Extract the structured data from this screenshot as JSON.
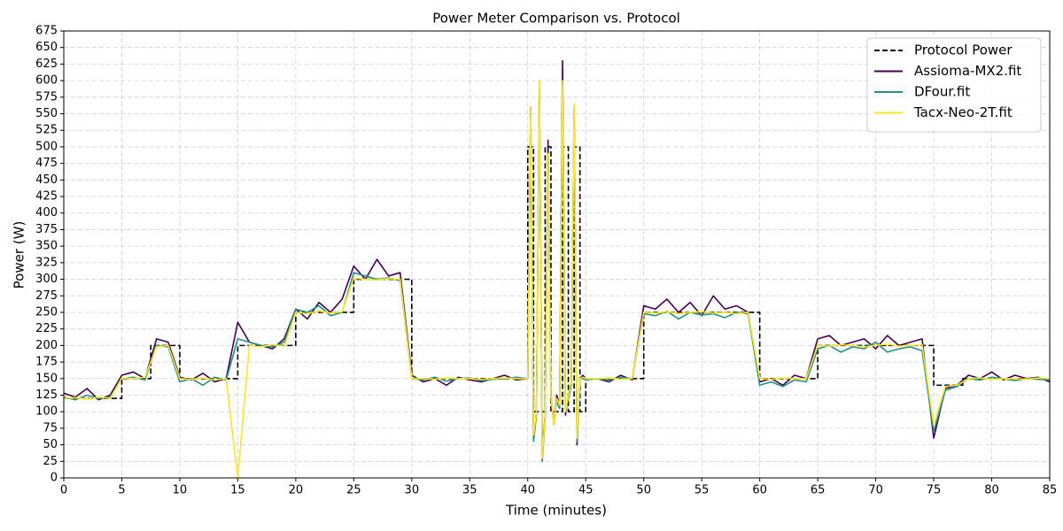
{
  "chart_data": {
    "type": "line",
    "title": "Power Meter Comparison vs. Protocol",
    "x_label": "Time (minutes)",
    "y_label": "Power (W)",
    "xlim": [
      0,
      85
    ],
    "xticks": [
      0,
      5,
      10,
      15,
      20,
      25,
      30,
      35,
      40,
      45,
      50,
      55,
      60,
      65,
      70,
      75,
      80,
      85
    ],
    "ylim": [
      0,
      675
    ],
    "yticks": [
      0,
      25,
      50,
      75,
      100,
      125,
      150,
      175,
      200,
      225,
      250,
      275,
      300,
      325,
      350,
      375,
      400,
      425,
      450,
      475,
      500,
      525,
      550,
      575,
      600,
      625,
      650,
      675
    ],
    "grid": true,
    "legend": "upper-right",
    "x": [
      0,
      1,
      2,
      3,
      4,
      5,
      6,
      7,
      8,
      9,
      10,
      11,
      12,
      13,
      14,
      15,
      16,
      17,
      18,
      19,
      20,
      21,
      22,
      23,
      24,
      25,
      26,
      27,
      28,
      29,
      30,
      31,
      32,
      33,
      34,
      35,
      36,
      37,
      38,
      39,
      40,
      40.25,
      40.5,
      40.75,
      41,
      41.25,
      41.5,
      41.75,
      42,
      42.25,
      42.5,
      42.75,
      43,
      43.25,
      43.5,
      43.75,
      44,
      44.25,
      44.5,
      44.75,
      45,
      46,
      47,
      48,
      49,
      50,
      51,
      52,
      53,
      54,
      55,
      56,
      57,
      58,
      59,
      60,
      61,
      62,
      63,
      64,
      65,
      66,
      67,
      68,
      69,
      70,
      71,
      72,
      73,
      74,
      75,
      76,
      77,
      78,
      79,
      80,
      81,
      82,
      83,
      84,
      85
    ],
    "series": [
      {
        "name": "Protocol Power",
        "color": "#000000",
        "dashed": true,
        "x": [
          0,
          5,
          5,
          7.5,
          7.5,
          10,
          10,
          15,
          15,
          20,
          20,
          25,
          25,
          30,
          30,
          40,
          40,
          40.5,
          40.5,
          41.5,
          41.5,
          42,
          42,
          43,
          43,
          43.5,
          43.5,
          44,
          44,
          44.5,
          44.5,
          45,
          45,
          50,
          50,
          60,
          60,
          65,
          65,
          75,
          75,
          77.5,
          77.5,
          85
        ],
        "values": [
          120,
          120,
          150,
          150,
          200,
          200,
          150,
          150,
          200,
          200,
          250,
          250,
          300,
          300,
          150,
          150,
          500,
          500,
          100,
          100,
          500,
          500,
          100,
          100,
          500,
          500,
          100,
          100,
          500,
          500,
          100,
          100,
          150,
          150,
          250,
          250,
          150,
          150,
          200,
          200,
          140,
          140,
          150,
          150
        ]
      },
      {
        "name": "Assioma-MX2.fit",
        "color": "#440154",
        "values": [
          128,
          122,
          135,
          118,
          125,
          155,
          160,
          150,
          210,
          205,
          152,
          148,
          158,
          145,
          150,
          235,
          205,
          200,
          195,
          210,
          255,
          240,
          265,
          250,
          270,
          320,
          300,
          330,
          305,
          310,
          155,
          145,
          150,
          140,
          152,
          148,
          145,
          150,
          155,
          148,
          150,
          560,
          60,
          100,
          590,
          40,
          95,
          510,
          125,
          80,
          125,
          110,
          630,
          95,
          125,
          145,
          560,
          50,
          150,
          155,
          150,
          150,
          145,
          155,
          148,
          260,
          255,
          270,
          250,
          265,
          245,
          275,
          255,
          260,
          250,
          145,
          150,
          140,
          155,
          150,
          210,
          215,
          200,
          205,
          210,
          195,
          215,
          200,
          205,
          210,
          60,
          135,
          140,
          155,
          150,
          160,
          148,
          155,
          150,
          152,
          145
        ]
      },
      {
        "name": "DFour.fit",
        "color": "#21918c",
        "values": [
          122,
          118,
          125,
          120,
          122,
          150,
          152,
          148,
          200,
          198,
          145,
          150,
          140,
          152,
          148,
          210,
          205,
          200,
          198,
          205,
          255,
          250,
          260,
          245,
          250,
          310,
          305,
          300,
          302,
          298,
          150,
          148,
          152,
          146,
          150,
          151,
          147,
          149,
          150,
          152,
          150,
          550,
          55,
          95,
          600,
          25,
          90,
          480,
          120,
          85,
          115,
          105,
          595,
          100,
          120,
          140,
          555,
          55,
          150,
          150,
          148,
          150,
          148,
          152,
          150,
          248,
          245,
          252,
          240,
          250,
          246,
          248,
          242,
          250,
          248,
          140,
          145,
          138,
          148,
          145,
          195,
          200,
          190,
          198,
          195,
          205,
          190,
          195,
          198,
          192,
          70,
          132,
          138,
          150,
          148,
          152,
          150,
          147,
          150,
          149,
          148
        ]
      },
      {
        "name": "Tacx-Neo-2T.fit",
        "color": "#fde725",
        "values": [
          120,
          121,
          119,
          122,
          120,
          151,
          150,
          152,
          198,
          200,
          150,
          149,
          151,
          148,
          150,
          0,
          200,
          198,
          201,
          199,
          250,
          248,
          252,
          249,
          251,
          302,
          300,
          299,
          301,
          300,
          150,
          150,
          149,
          151,
          150,
          150,
          149,
          150,
          151,
          150,
          150,
          560,
          65,
          100,
          600,
          30,
          95,
          490,
          125,
          80,
          120,
          110,
          600,
          100,
          125,
          145,
          565,
          60,
          150,
          152,
          150,
          150,
          151,
          149,
          150,
          250,
          249,
          251,
          248,
          250,
          251,
          249,
          250,
          248,
          250,
          150,
          149,
          151,
          150,
          150,
          200,
          199,
          201,
          200,
          198,
          200,
          202,
          199,
          200,
          201,
          80,
          138,
          140,
          150,
          151,
          149,
          150,
          150,
          149,
          151,
          150
        ]
      }
    ]
  }
}
